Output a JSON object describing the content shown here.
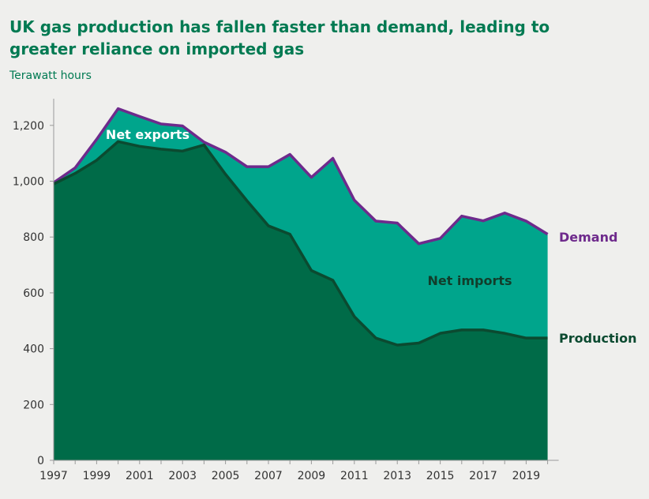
{
  "chart_data": {
    "type": "area",
    "title": "UK gas production has fallen faster than demand, leading to greater reliance on imported gas",
    "subtitle": "Terawatt hours",
    "x": [
      1997,
      1998,
      1999,
      2000,
      2001,
      2002,
      2003,
      2004,
      2005,
      2006,
      2007,
      2008,
      2009,
      2010,
      2011,
      2012,
      2013,
      2014,
      2015,
      2016,
      2017,
      2018,
      2019,
      2020
    ],
    "xticks": [
      "1997",
      "1999",
      "2001",
      "2003",
      "2005",
      "2007",
      "2009",
      "2011",
      "2013",
      "2015",
      "2017",
      "2019"
    ],
    "yticks": [
      "0",
      "200",
      "400",
      "600",
      "800",
      "1,000",
      "1,200"
    ],
    "ylim": [
      0,
      1300
    ],
    "series": [
      {
        "name": "Demand",
        "color": "#6e2a8c",
        "values": [
          995,
          1048,
          1150,
          1260,
          1232,
          1205,
          1198,
          1140,
          1104,
          1052,
          1052,
          1096,
          1014,
          1082,
          932,
          857,
          850,
          776,
          795,
          875,
          858,
          886,
          857,
          810
        ]
      },
      {
        "name": "Production",
        "color": "#0b5c3c",
        "values": [
          990,
          1028,
          1075,
          1142,
          1125,
          1115,
          1108,
          1130,
          1025,
          930,
          840,
          810,
          680,
          645,
          515,
          438,
          413,
          420,
          455,
          467,
          467,
          455,
          438,
          438
        ]
      }
    ],
    "area_labels": {
      "net_exports": "Net exports",
      "net_imports": "Net imports"
    },
    "colors": {
      "production_fill": "#006b48",
      "imports_fill": "#00a58c",
      "exports_fill": "#a679d1",
      "demand_line": "#6e2a8c",
      "production_line": "#0b4a30",
      "title": "#007a52"
    },
    "grid": false
  }
}
